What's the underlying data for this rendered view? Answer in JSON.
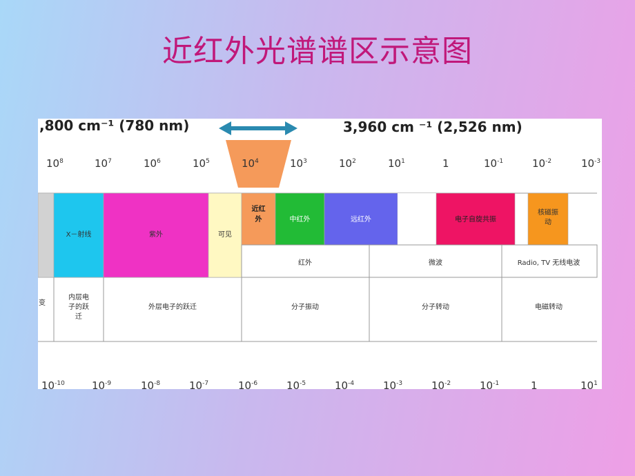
{
  "title": "近红外光谱谱区示意图",
  "top_left_label": ",800 cm⁻¹ (780 nm)",
  "top_right_label": "3,960 cm ⁻¹ (2,526 nm)",
  "top_ticks": [
    {
      "base": "10",
      "exp": "8"
    },
    {
      "base": "10",
      "exp": "7"
    },
    {
      "base": "10",
      "exp": "6"
    },
    {
      "base": "10",
      "exp": "5"
    },
    {
      "base": "10",
      "exp": "4"
    },
    {
      "base": "10",
      "exp": "3"
    },
    {
      "base": "10",
      "exp": "2"
    },
    {
      "base": "10",
      "exp": "1"
    },
    {
      "base": "1",
      "exp": ""
    },
    {
      "base": "10",
      "exp": "-1"
    },
    {
      "base": "10",
      "exp": "-2"
    },
    {
      "base": "10",
      "exp": "-3"
    }
  ],
  "bottom_ticks": [
    {
      "base": "10",
      "exp": "-10"
    },
    {
      "base": "10",
      "exp": "-9"
    },
    {
      "base": "10",
      "exp": "-8"
    },
    {
      "base": "10",
      "exp": "-7"
    },
    {
      "base": "10",
      "exp": "-6"
    },
    {
      "base": "10",
      "exp": "-5"
    },
    {
      "base": "10",
      "exp": "-4"
    },
    {
      "base": "10",
      "exp": "-3"
    },
    {
      "base": "10",
      "exp": "-2"
    },
    {
      "base": "10",
      "exp": "-1"
    },
    {
      "base": "1",
      "exp": ""
    },
    {
      "base": "10",
      "exp": "1"
    }
  ],
  "bands": [
    {
      "id": "gray",
      "label": "",
      "color": "#d2d2d2"
    },
    {
      "id": "xray",
      "label": "X－射线",
      "color": "#1ec6ee"
    },
    {
      "id": "uv",
      "label": "紫外",
      "color": "#ef32c4"
    },
    {
      "id": "visible",
      "label": "可见",
      "color": "#fff8c2"
    },
    {
      "id": "nir",
      "label": "近红外",
      "color": "#f59a5a"
    },
    {
      "id": "mir",
      "label": "中红外",
      "color": "#22bb36"
    },
    {
      "id": "fir",
      "label": "远红外",
      "color": "#6464ec"
    },
    {
      "id": "blank",
      "label": "",
      "color": "#ffffff"
    },
    {
      "id": "esr",
      "label": "电子自旋共振",
      "color": "#ee1464"
    },
    {
      "id": "nmr",
      "label": "核磁振动",
      "color": "#f6961e"
    }
  ],
  "regions": [
    "红外",
    "微波",
    "Radio, TV 无线电波"
  ],
  "transitions": [
    "变",
    "内层电子的跃迁",
    "外层电子的跃迁",
    "分子振动",
    "分子转动",
    "电磁转动"
  ],
  "colors": {
    "title": "#c0187a",
    "arrow": "#2a8ab0",
    "funnel": "#f59a5a"
  }
}
